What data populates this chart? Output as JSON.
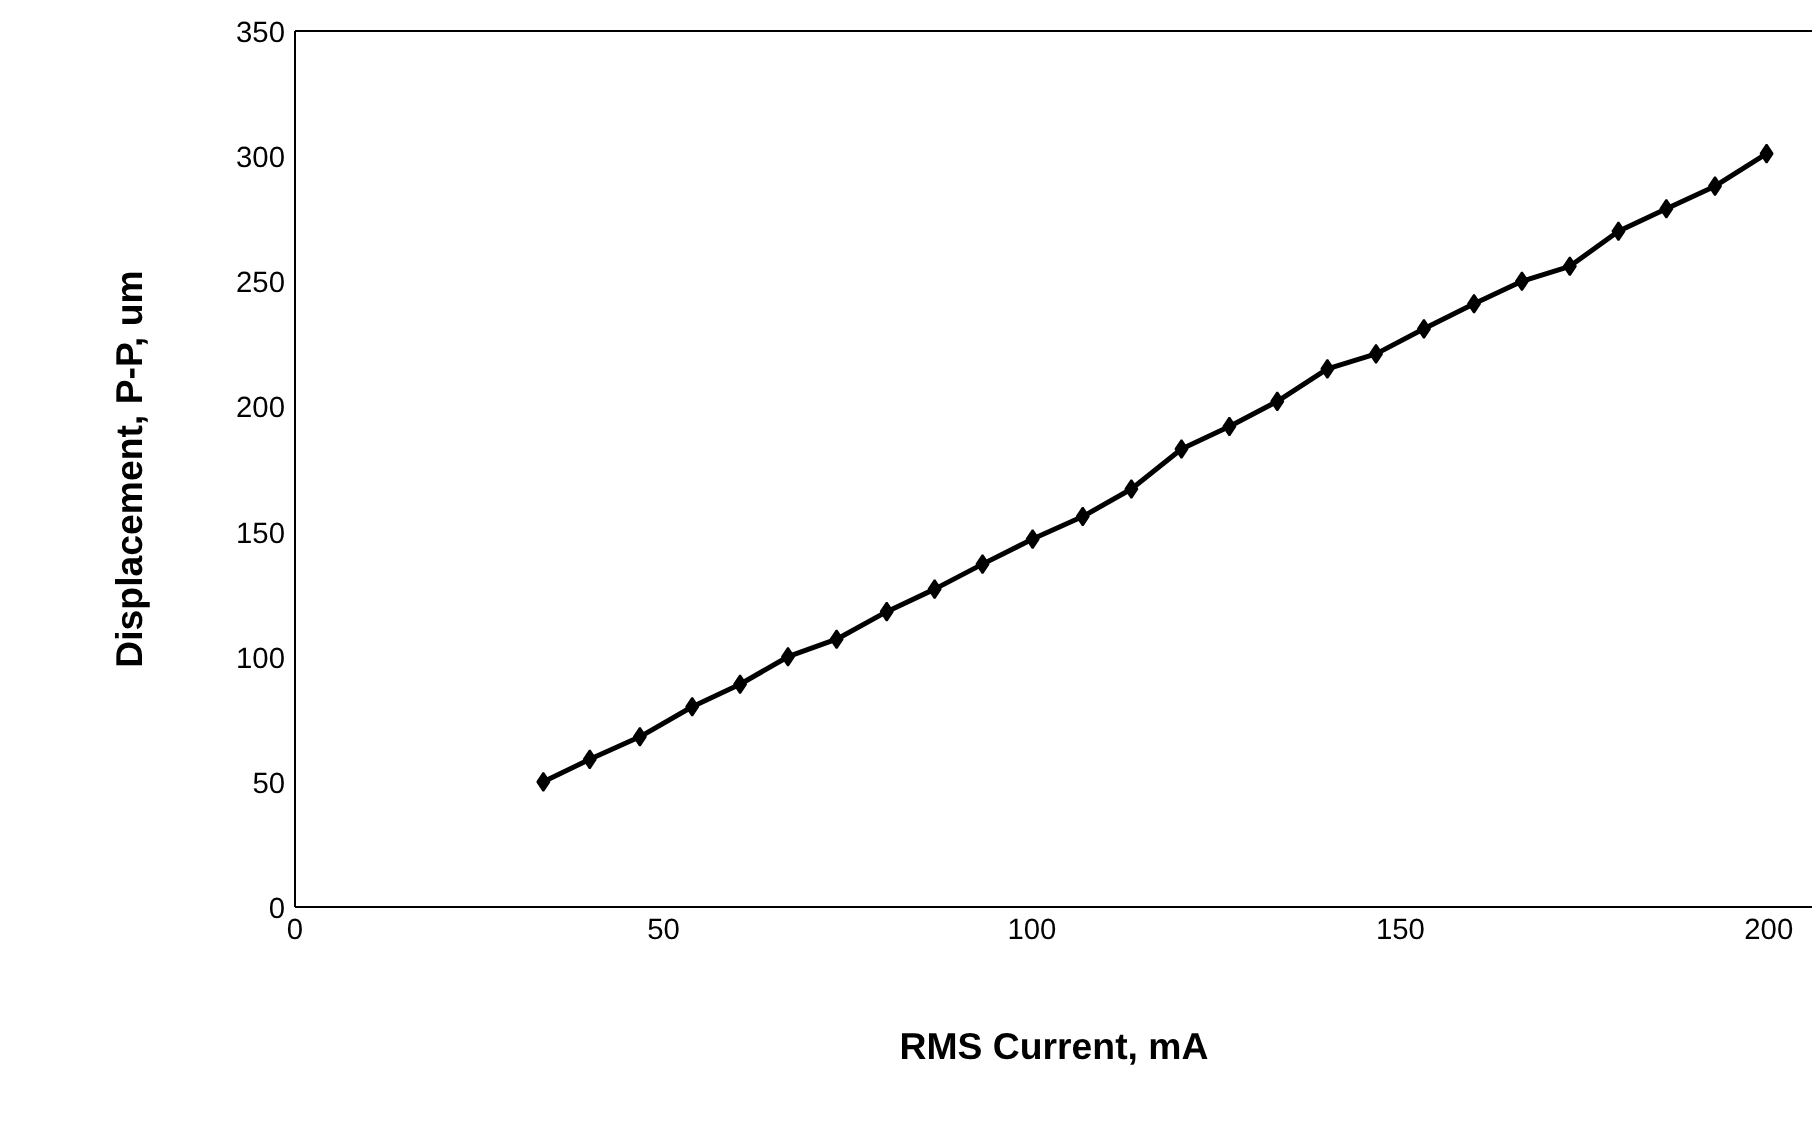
{
  "chart_data": {
    "type": "line",
    "xlabel": "RMS Current, mA",
    "ylabel": "Displacement, P-P, um",
    "x": [
      33.7,
      40,
      46.8,
      53.9,
      60.4,
      66.9,
      73.5,
      80.3,
      86.8,
      93.3,
      100.1,
      106.9,
      113.5,
      120.3,
      126.8,
      133.3,
      140.1,
      146.7,
      153.2,
      160,
      166.5,
      173,
      179.6,
      186.1,
      192.7,
      199.7
    ],
    "series": [
      {
        "color": "#000000",
        "values": [
          50,
          59,
          68,
          80,
          89,
          100,
          107,
          118,
          127,
          137,
          147,
          156,
          167,
          183,
          192,
          202,
          215,
          221,
          231,
          241,
          250,
          256,
          270,
          279,
          288,
          301
        ]
      }
    ],
    "xlim": [
      0,
      206
    ],
    "ylim": [
      0,
      350
    ],
    "xticks": [
      0,
      50,
      100,
      150,
      200
    ],
    "yticks": [
      0,
      50,
      100,
      150,
      200,
      250,
      300,
      350
    ],
    "grid": false,
    "marker": "diamond",
    "line_style": "solid"
  }
}
